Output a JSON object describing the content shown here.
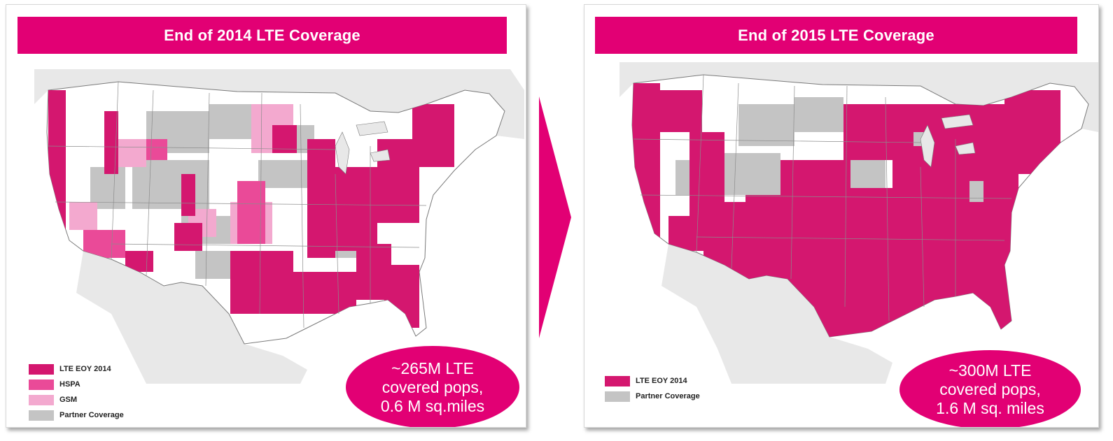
{
  "colors": {
    "brand": "#e20074",
    "lte": "#d4176f",
    "hspa": "#ea4a98",
    "gsm": "#f3a9cf",
    "partner": "#c4c4c4",
    "land": "#ffffff",
    "state_border": "#8c8c8c"
  },
  "left_panel": {
    "title": "End of 2014 LTE Coverage",
    "legend": [
      {
        "label": "LTE EOY 2014",
        "color": "#d4176f"
      },
      {
        "label": "HSPA",
        "color": "#ea4a98"
      },
      {
        "label": "GSM",
        "color": "#f3a9cf"
      },
      {
        "label": "Partner Coverage",
        "color": "#c4c4c4"
      }
    ],
    "callout": {
      "line1": "~265M LTE",
      "line2": "covered pops,",
      "line3": "0.6 M sq.miles"
    }
  },
  "right_panel": {
    "title": "End of 2015 LTE Coverage",
    "legend": [
      {
        "label": "LTE EOY 2014",
        "color": "#d4176f"
      },
      {
        "label": "Partner Coverage",
        "color": "#c4c4c4"
      }
    ],
    "callout": {
      "line1": "~300M LTE",
      "line2": "covered pops,",
      "line3": "1.6 M sq. miles"
    }
  },
  "arrow_icon": "chevron-right-icon"
}
